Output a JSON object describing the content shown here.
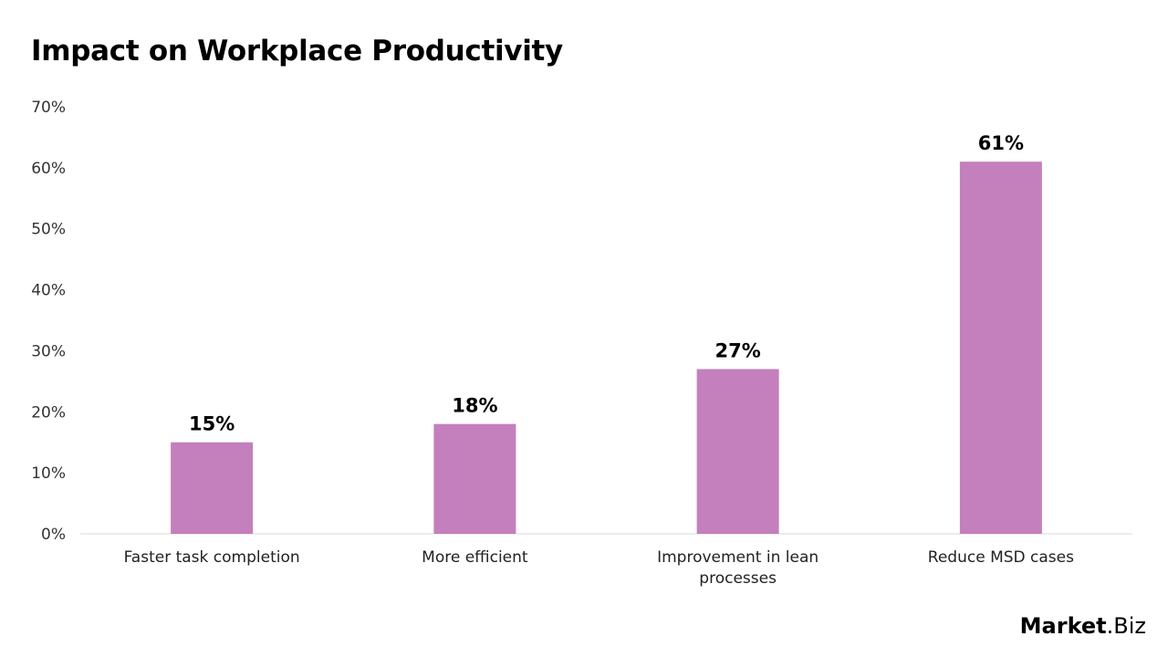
{
  "chart_data": {
    "type": "bar",
    "title": "Impact on Workplace Productivity",
    "categories": [
      [
        "Faster task completion"
      ],
      [
        "More efficient"
      ],
      [
        "Improvement in lean",
        "processes"
      ],
      [
        "Reduce MSD cases"
      ]
    ],
    "values": [
      15,
      18,
      27,
      61
    ],
    "data_labels": [
      "15%",
      "18%",
      "27%",
      "61%"
    ],
    "ylim": [
      0,
      70
    ],
    "yticks": [
      0,
      10,
      20,
      30,
      40,
      50,
      60,
      70
    ],
    "ytick_labels": [
      "0%",
      "10%",
      "20%",
      "30%",
      "40%",
      "50%",
      "60%",
      "70%"
    ],
    "grid": false,
    "bar_color": "#c47fbd",
    "xlabel": "",
    "ylabel": ""
  },
  "logo": {
    "text": "Market.Biz",
    "part1": "Market",
    "part2": ".Biz"
  }
}
